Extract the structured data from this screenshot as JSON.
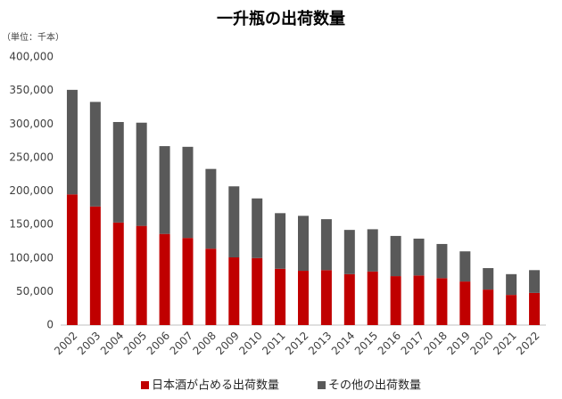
{
  "chart_data": {
    "type": "stacked_bar",
    "title": "一升瓶の出荷数量",
    "unit_label": "（単位：千本）",
    "categories": [
      "2002",
      "2003",
      "2004",
      "2005",
      "2006",
      "2007",
      "2008",
      "2009",
      "2010",
      "2011",
      "2012",
      "2013",
      "2014",
      "2015",
      "2016",
      "2017",
      "2018",
      "2019",
      "2020",
      "2021",
      "2022"
    ],
    "series": [
      {
        "name": "日本酒が占める出荷数量",
        "color": "#c00000",
        "values": [
          195000,
          177000,
          153000,
          148000,
          136000,
          130000,
          114000,
          101000,
          100000,
          84000,
          81000,
          82000,
          76000,
          80000,
          73000,
          74000,
          70000,
          65000,
          53000,
          45000,
          48000
        ]
      },
      {
        "name": "その他の出荷数量",
        "color": "#595959",
        "values": [
          156000,
          156000,
          150000,
          154000,
          131000,
          136000,
          119000,
          106000,
          89000,
          83000,
          82000,
          76000,
          66000,
          63000,
          60000,
          55000,
          51000,
          45000,
          32000,
          31000,
          34000
        ]
      }
    ],
    "ylim": [
      0,
      400000
    ],
    "yticks": [
      0,
      {
        "value": 50000,
        "label": "50,000"
      },
      {
        "value": 100000,
        "label": "100,000"
      },
      {
        "value": 150000,
        "label": "150,000"
      },
      {
        "value": 200000,
        "label": "200,000"
      },
      {
        "value": 250000,
        "label": "250,000"
      },
      {
        "value": 300000,
        "label": "300,000"
      },
      {
        "value": 350000,
        "label": "350,000"
      },
      {
        "value": 400000,
        "label": "400,000"
      }
    ],
    "legend": "bottom"
  }
}
